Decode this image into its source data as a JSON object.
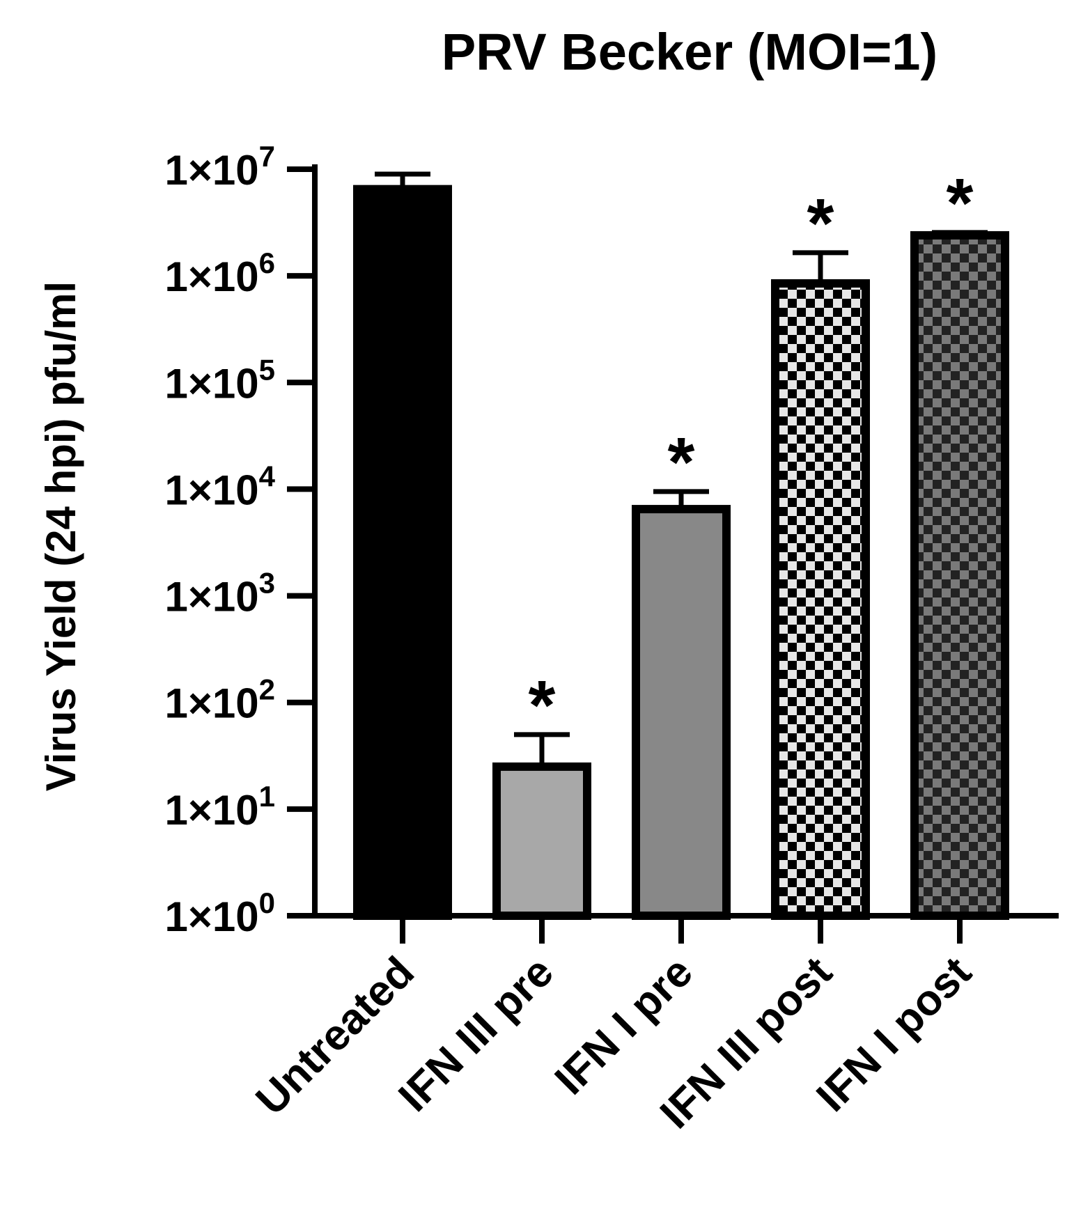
{
  "chart_data": {
    "type": "bar",
    "title": "PRV Becker (MOI=1)",
    "xlabel": "",
    "ylabel": "Virus Yield (24 hpi) pfu/ml",
    "yscale": "log",
    "ylim": [
      1,
      10000000
    ],
    "ytick_base": "1×10",
    "yticks": [
      {
        "value": 1,
        "exp": "0"
      },
      {
        "value": 10,
        "exp": "1"
      },
      {
        "value": 100,
        "exp": "2"
      },
      {
        "value": 1000,
        "exp": "3"
      },
      {
        "value": 10000,
        "exp": "4"
      },
      {
        "value": 100000,
        "exp": "5"
      },
      {
        "value": 1000000,
        "exp": "6"
      },
      {
        "value": 10000000,
        "exp": "7"
      }
    ],
    "categories": [
      "Untreated",
      "IFN III pre",
      "IFN I pre",
      "IFN III post",
      "IFN I post"
    ],
    "values": [
      6500000,
      25,
      6500,
      850000,
      2400000
    ],
    "error_upper": [
      9000000,
      50,
      9500,
      1650000,
      2550000
    ],
    "significance": [
      "",
      "*",
      "*",
      "*",
      "*"
    ],
    "fills": [
      "solid-black",
      "light-gray",
      "mid-gray",
      "checker-light",
      "checker-dark"
    ],
    "grid": false,
    "legend": "none"
  }
}
